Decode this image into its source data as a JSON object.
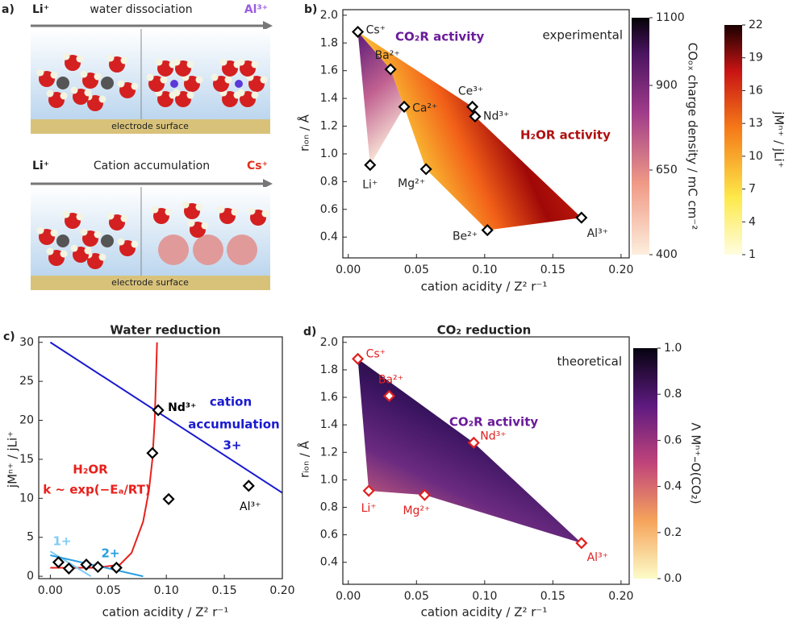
{
  "panel_a": {
    "label": "a)",
    "top": {
      "left_ion": "Li⁺",
      "process": "water dissociation",
      "right_ion": "Al³⁺",
      "surface": "electrode surface"
    },
    "bottom": {
      "left_ion": "Li⁺",
      "process": "Cation accumulation",
      "right_ion": "Cs⁺",
      "surface": "electrode surface"
    }
  },
  "chart_data": [
    {
      "panel_label": "b)",
      "type": "scatter",
      "xlabel": "cation acidity / Z² r⁻¹",
      "ylabel": "rᵢₒₙ / Å",
      "xlim": [
        -0.004,
        0.206
      ],
      "xticks": [
        {
          "value": 0,
          "label": "0.00"
        },
        {
          "value": 0.05,
          "label": "0.05"
        },
        {
          "value": 0.1,
          "label": "0.10"
        },
        {
          "value": 0.15,
          "label": "0.15"
        },
        {
          "value": 0.2,
          "label": "0.20"
        }
      ],
      "ylim": [
        0.25,
        2.04
      ],
      "yticks": [
        0.4,
        0.6,
        0.8,
        {
          "value": 1,
          "label": "1.0"
        },
        1.2,
        1.4,
        1.6,
        1.8,
        {
          "value": 2,
          "label": "2.0"
        }
      ],
      "point_labels": [
        "Cs⁺",
        "Ba²⁺",
        "Ca²⁺",
        "Ce³⁺",
        "Nd³⁺",
        "Li⁺",
        "Mg²⁺",
        "Be²⁺",
        "Al³⁺"
      ],
      "x": [
        0.007,
        0.031,
        0.041,
        0.091,
        0.093,
        0.016,
        0.057,
        0.102,
        0.171
      ],
      "values": [
        1.88,
        1.61,
        1.34,
        1.34,
        1.27,
        0.92,
        0.89,
        0.45,
        0.54
      ],
      "marker_color": "#000000",
      "label_color": "#222222",
      "annotations": [
        {
          "text": "CO₂R activity",
          "color": "#6a1b9a"
        },
        {
          "text": "H₂OR activity",
          "color": "#b01010"
        },
        {
          "text": "experimental",
          "color": "#222222"
        }
      ],
      "colorbars": [
        {
          "label": "COₒₓ charge density / mC cm⁻²",
          "lim": [
            400,
            1100
          ],
          "ticks": [
            400,
            650,
            900,
            1100
          ]
        },
        {
          "label": "jMⁿ⁺ / jLi⁺",
          "lim": [
            1,
            22
          ],
          "ticks": [
            1,
            4,
            7,
            10,
            13,
            16,
            19,
            22
          ]
        }
      ]
    },
    {
      "panel_label": "c)",
      "type": "scatter",
      "title": "Water reduction",
      "xlabel": "cation acidity / Z² r⁻¹",
      "ylabel": "jMⁿ⁺ / jLi⁺",
      "xlim": [
        -0.01,
        0.2
      ],
      "xticks": [
        {
          "value": 0,
          "label": "0.00"
        },
        {
          "value": 0.05,
          "label": "0.05"
        },
        {
          "value": 0.1,
          "label": "0.10"
        },
        {
          "value": 0.15,
          "label": "0.15"
        },
        {
          "value": 0.2,
          "label": "0.20"
        }
      ],
      "ylim": [
        -0.3,
        30.7
      ],
      "yticks": [
        0,
        5,
        10,
        15,
        20,
        25,
        30
      ],
      "point_labels": [
        null,
        null,
        null,
        null,
        null,
        null,
        "Nd³⁺",
        null,
        "Al³⁺"
      ],
      "x": [
        0.007,
        0.016,
        0.031,
        0.041,
        0.057,
        0.088,
        0.093,
        0.102,
        0.171
      ],
      "values": [
        1.8,
        1.0,
        1.5,
        1.2,
        1.1,
        15.8,
        21.3,
        9.9,
        11.6
      ],
      "marker_color": "#000000",
      "label_color": "#000000",
      "curves": [
        {
          "color": "#1a1ad0",
          "x": [
            0,
            0.2
          ],
          "values": [
            30,
            10.7
          ]
        },
        {
          "color": "#e8201c",
          "x": [
            0,
            0.04,
            0.06,
            0.07,
            0.08,
            0.085,
            0.088,
            0.09,
            0.092
          ],
          "values": [
            1.1,
            1.1,
            1.5,
            3,
            7,
            11,
            15,
            20,
            30
          ]
        },
        {
          "color": "#7fcbf2",
          "x": [
            0,
            0.035
          ],
          "values": [
            3.2,
            0
          ]
        },
        {
          "color": "#2a9ee0",
          "x": [
            0,
            0.08
          ],
          "values": [
            2.7,
            0
          ]
        }
      ],
      "annotations": [
        {
          "text": "cation",
          "color": "#1a1ad0"
        },
        {
          "text": "accumulation",
          "color": "#1a1ad0"
        },
        {
          "text": "3+",
          "color": "#1a1ad0"
        },
        {
          "text": "H₂OR",
          "color": "#e8201c"
        },
        {
          "text": "k ~ exp(−Eₐ/RT)",
          "color": "#e8201c"
        },
        {
          "text": "1+",
          "color": "#7fcbf2"
        },
        {
          "text": "2+",
          "color": "#2a9ee0"
        }
      ]
    },
    {
      "panel_label": "d)",
      "type": "scatter",
      "title": "CO₂ reduction",
      "xlabel": "cation acidity / Z² r⁻¹",
      "ylabel": "rᵢₒₙ / Å",
      "xlim": [
        -0.004,
        0.206
      ],
      "xticks": [
        {
          "value": 0,
          "label": "0.00"
        },
        {
          "value": 0.05,
          "label": "0.05"
        },
        {
          "value": 0.1,
          "label": "0.10"
        },
        {
          "value": 0.15,
          "label": "0.15"
        },
        {
          "value": 0.2,
          "label": "0.20"
        }
      ],
      "ylim": [
        0.24,
        2.04
      ],
      "yticks": [
        0.4,
        0.6,
        0.8,
        {
          "value": 1,
          "label": "1.0"
        },
        1.2,
        1.4,
        1.6,
        1.8,
        {
          "value": 2,
          "label": "2.0"
        }
      ],
      "point_labels": [
        "Cs⁺",
        "Ba²⁺",
        "Nd³⁺",
        "Li⁺",
        "Mg²⁺",
        "Al³⁺"
      ],
      "x": [
        0.007,
        0.03,
        0.092,
        0.015,
        0.056,
        0.171
      ],
      "values": [
        1.88,
        1.61,
        1.27,
        0.92,
        0.89,
        0.54
      ],
      "marker_color": "#e02020",
      "label_color": "#e02020",
      "annotations": [
        {
          "text": "theoretical",
          "color": "#222222"
        },
        {
          "text": "CO₂R activity",
          "color": "#6a1b9a"
        }
      ],
      "colorbars": [
        {
          "label": "Λ Mⁿ⁺–O(CO₂)",
          "lim": [
            0,
            1
          ],
          "ticks": [
            {
              "value": 0,
              "label": "0.0"
            },
            0.2,
            0.4,
            0.6,
            0.8,
            {
              "value": 1,
              "label": "1.0"
            }
          ]
        }
      ]
    }
  ]
}
